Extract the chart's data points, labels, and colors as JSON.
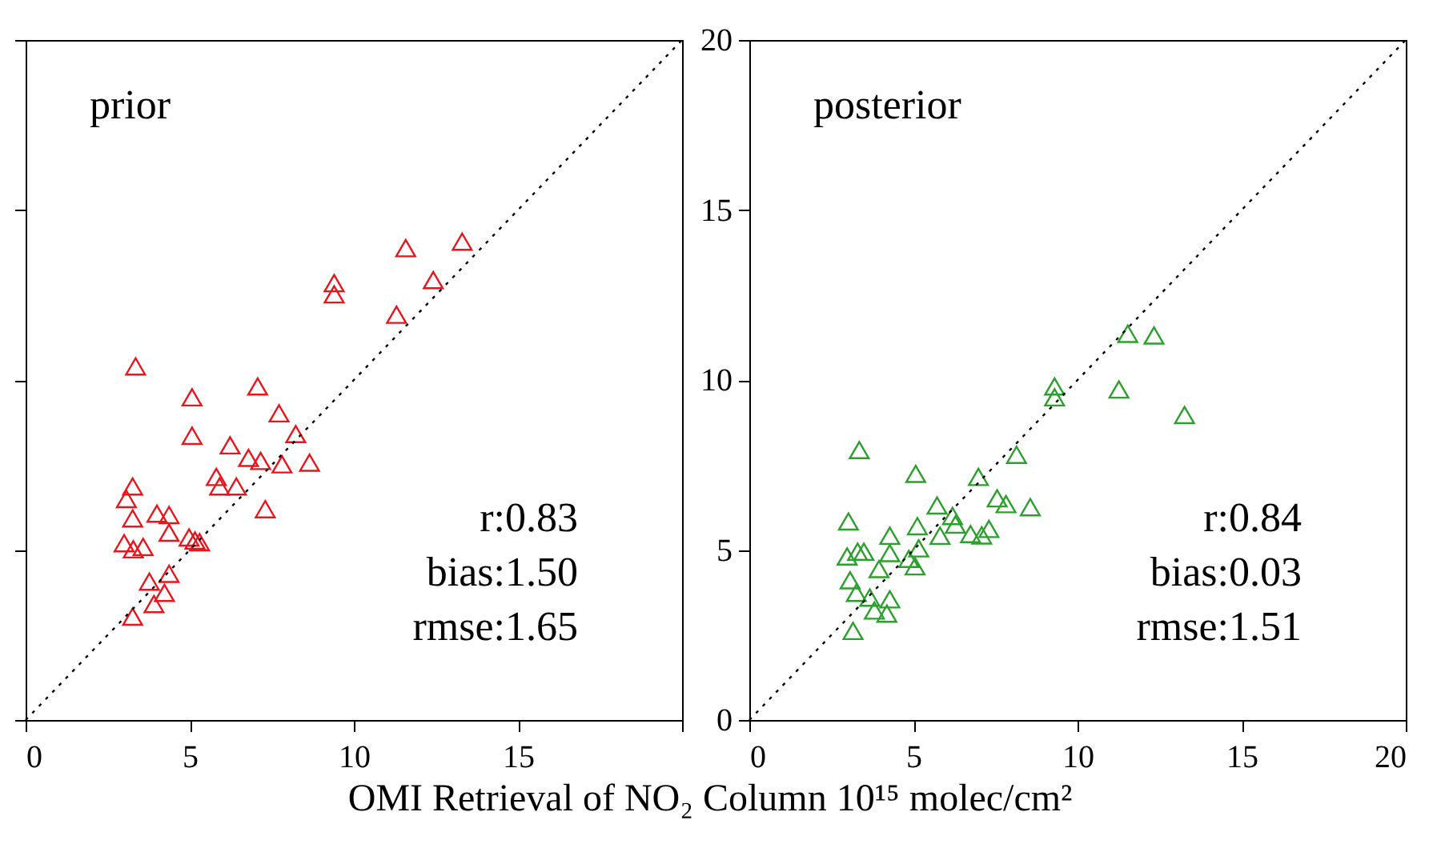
{
  "chart_data": [
    {
      "type": "scatter",
      "title": "prior",
      "xlabel": "OMI Retrieval of NO₂ Column  10¹⁵ molec/cm²",
      "xlim": [
        0,
        20
      ],
      "ylim": [
        0,
        20
      ],
      "xticks": [
        0,
        5,
        10,
        15,
        {
          "value": 20,
          "label": null
        }
      ],
      "yticks": [
        0,
        5,
        10,
        15,
        20
      ],
      "tick_labels": "x",
      "marker": "triangle",
      "annotations": [
        "r:0.83",
        "bias:1.50",
        "rmse:1.65"
      ],
      "series": [
        {
          "color": "#e8161c",
          "x": [
            3.35,
            5.07,
            5.07,
            7.07,
            7.72,
            8.23,
            8.65,
            6.23,
            6.79,
            7.16,
            7.81,
            5.81,
            5.91,
            6.42,
            7.3,
            3.26,
            3.07,
            3.26,
            4.0,
            4.37,
            4.37,
            3.0,
            3.28,
            3.58,
            4.98,
            5.16,
            5.3,
            3.77,
            4.37,
            4.23,
            3.91,
            3.26,
            9.4,
            9.4,
            11.58,
            13.3,
            12.42,
            11.3
          ],
          "values": [
            10.4,
            9.49,
            8.36,
            9.81,
            9.02,
            8.41,
            7.57,
            8.08,
            7.71,
            7.62,
            7.52,
            7.15,
            6.87,
            6.87,
            6.2,
            6.87,
            6.5,
            5.93,
            6.07,
            6.03,
            5.51,
            5.2,
            5.02,
            5.09,
            5.37,
            5.28,
            5.23,
            4.07,
            4.3,
            3.74,
            3.41,
            3.04,
            12.85,
            12.52,
            13.88,
            14.07,
            12.94,
            11.92
          ]
        },
        {
          "type": "line",
          "color": "#000000",
          "line_style": "dotted",
          "marker": "none",
          "x": [
            0,
            20
          ],
          "values": [
            0,
            20
          ]
        }
      ]
    },
    {
      "type": "scatter",
      "title": "posterior",
      "xlim": [
        0,
        20
      ],
      "ylim": [
        0,
        20
      ],
      "xticks": [
        0,
        5,
        10,
        15,
        20
      ],
      "yticks": [
        0,
        5,
        10,
        15,
        20
      ],
      "marker": "triangle",
      "annotations": [
        "r:0.84",
        "bias:0.03",
        "rmse:1.51"
      ],
      "series": [
        {
          "color": "#2ca02c",
          "x": [
            9.3,
            9.3,
            3.35,
            8.14,
            5.07,
            6.98,
            7.55,
            7.82,
            8.56,
            5.72,
            6.19,
            6.28,
            5.12,
            3.02,
            5.81,
            6.74,
            7.3,
            7.08,
            4.28,
            2.98,
            3.3,
            3.49,
            4.28,
            5.16,
            4.86,
            5.05,
            3.95,
            3.07,
            3.26,
            3.67,
            4.28,
            3.81,
            4.19,
            3.16,
            11.53,
            12.33,
            11.26,
            13.26
          ],
          "values": [
            9.81,
            9.49,
            7.94,
            7.8,
            7.24,
            7.15,
            6.52,
            6.35,
            6.26,
            6.31,
            6.0,
            5.75,
            5.7,
            5.84,
            5.42,
            5.47,
            5.62,
            5.43,
            5.42,
            4.81,
            4.95,
            4.95,
            4.91,
            5.05,
            4.74,
            4.52,
            4.44,
            4.11,
            3.74,
            3.6,
            3.55,
            3.22,
            3.13,
            2.62,
            11.36,
            11.31,
            9.72,
            8.97
          ]
        },
        {
          "type": "line",
          "color": "#000000",
          "line_style": "dotted",
          "marker": "none",
          "x": [
            0,
            20
          ],
          "values": [
            0,
            20
          ]
        }
      ]
    }
  ]
}
